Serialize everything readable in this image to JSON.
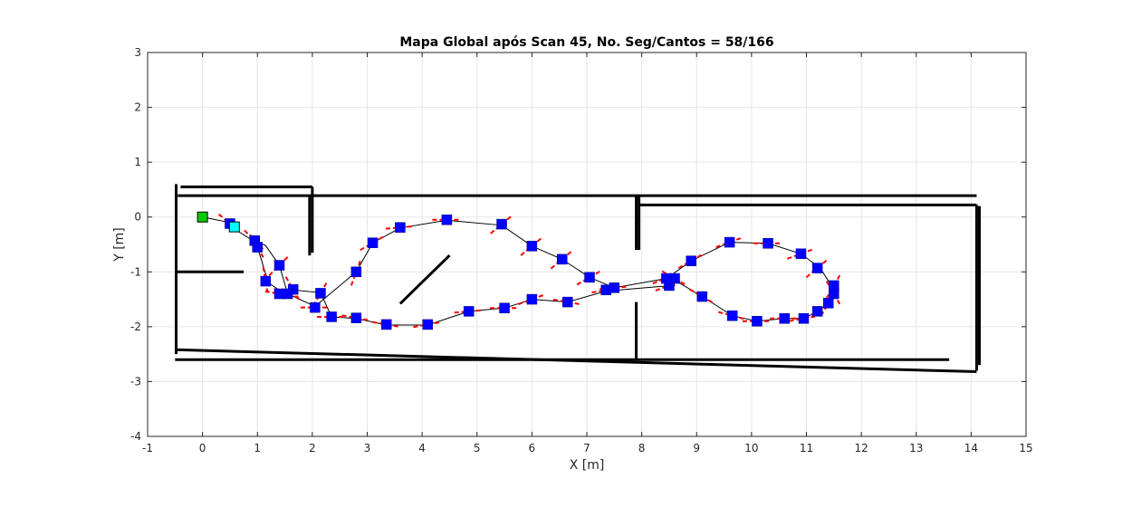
{
  "chart_data": {
    "type": "scatter",
    "title": "Mapa Global após Scan 45, No. Seg/Cantos = 58/166",
    "xlabel": "X [m]",
    "ylabel": "Y [m]",
    "xlim": [
      -1,
      15
    ],
    "ylim": [
      -4,
      3
    ],
    "xticks": [
      -1,
      0,
      1,
      2,
      3,
      4,
      5,
      6,
      7,
      8,
      9,
      10,
      11,
      12,
      13,
      14,
      15
    ],
    "yticks": [
      -4,
      -3,
      -2,
      -1,
      0,
      1,
      2,
      3
    ],
    "grid": true,
    "colors": {
      "path": "#000000",
      "pose_marker": "#0000ff",
      "heading": "#ff0000",
      "walls": "#000000",
      "start_marker": "#00cc00",
      "current_marker": "#00ffff"
    },
    "walls": [
      {
        "x": [
          -0.45,
          14.1
        ],
        "y": [
          0.39,
          0.39
        ]
      },
      {
        "x": [
          -0.4,
          2.0
        ],
        "y": [
          0.55,
          0.55
        ]
      },
      {
        "x": [
          -0.48,
          -0.48
        ],
        "y": [
          0.6,
          -2.5
        ]
      },
      {
        "x": [
          -0.48,
          0.75
        ],
        "y": [
          -1.0,
          -1.0
        ]
      },
      {
        "x": [
          1.95,
          1.95
        ],
        "y": [
          0.4,
          -0.7
        ]
      },
      {
        "x": [
          2.0,
          2.0
        ],
        "y": [
          0.55,
          -0.65
        ]
      },
      {
        "x": [
          7.9,
          7.9
        ],
        "y": [
          0.4,
          -0.6
        ]
      },
      {
        "x": [
          7.95,
          7.95
        ],
        "y": [
          0.38,
          -0.6
        ]
      },
      {
        "x": [
          7.95,
          14.1
        ],
        "y": [
          0.22,
          0.22
        ]
      },
      {
        "x": [
          14.1,
          14.1
        ],
        "y": [
          0.22,
          -2.8
        ]
      },
      {
        "x": [
          14.15,
          14.15
        ],
        "y": [
          0.2,
          -2.7
        ]
      },
      {
        "x": [
          7.9,
          7.9
        ],
        "y": [
          -1.55,
          -2.6
        ]
      },
      {
        "x": [
          -0.5,
          13.6
        ],
        "y": [
          -2.6,
          -2.6
        ]
      },
      {
        "x": [
          -0.5,
          14.1
        ],
        "y": [
          -2.42,
          -2.82
        ]
      },
      {
        "x": [
          3.6,
          4.5
        ],
        "y": [
          -1.58,
          -0.7
        ]
      }
    ],
    "path": {
      "x": [
        0.0,
        0.5,
        0.55,
        0.95,
        1.0,
        1.2,
        1.5,
        1.65,
        2.15,
        2.35,
        2.8,
        3.35,
        4.1,
        4.85,
        5.5,
        6.0,
        6.65,
        7.35,
        8.3,
        8.6,
        8.55,
        9.1,
        9.65,
        10.1,
        10.6,
        10.95,
        11.2,
        11.4,
        11.5,
        11.45,
        11.25,
        10.9,
        10.3,
        9.6,
        8.9,
        8.45,
        7.5,
        7.05,
        6.55,
        6.0,
        5.45,
        4.45,
        3.6,
        3.1,
        2.8,
        2.05,
        1.55,
        1.4,
        1.15,
        1.0,
        0.95
      ],
      "y": [
        0.0,
        -0.1,
        -0.2,
        -0.45,
        -0.55,
        -1.2,
        -1.4,
        -1.33,
        -1.38,
        -1.82,
        -1.85,
        -1.97,
        -1.97,
        -1.72,
        -1.66,
        -1.5,
        -1.55,
        -1.35,
        -1.27,
        -1.25,
        -1.12,
        -1.45,
        -1.8,
        -1.9,
        -1.85,
        -1.85,
        -1.72,
        -1.58,
        -1.4,
        -1.25,
        -0.93,
        -0.67,
        -0.48,
        -0.46,
        -0.8,
        -1.12,
        -1.29,
        -1.1,
        -0.77,
        -0.53,
        -0.15,
        -0.06,
        -0.2,
        -0.47,
        -1.0,
        -1.63,
        -1.4,
        -0.88,
        -0.52,
        -0.45,
        -0.42
      ]
    },
    "poses": {
      "x": [
        0.5,
        0.95,
        1.0,
        1.15,
        1.4,
        1.65,
        2.05,
        2.35,
        2.8,
        3.35,
        4.1,
        4.85,
        5.5,
        6.0,
        6.65,
        7.35,
        8.5,
        8.6,
        9.1,
        9.65,
        10.1,
        10.6,
        10.95,
        11.2,
        11.4,
        11.5,
        11.5,
        11.2,
        10.9,
        10.3,
        9.6,
        8.9,
        8.45,
        7.5,
        7.05,
        6.55,
        6.0,
        5.45,
        4.45,
        3.6,
        3.1,
        2.8,
        2.15,
        1.55,
        1.4
      ],
      "y": [
        -0.12,
        -0.43,
        -0.55,
        -1.17,
        -1.4,
        -1.32,
        -1.65,
        -1.82,
        -1.84,
        -1.96,
        -1.96,
        -1.72,
        -1.66,
        -1.5,
        -1.55,
        -1.33,
        -1.25,
        -1.12,
        -1.45,
        -1.8,
        -1.9,
        -1.85,
        -1.85,
        -1.72,
        -1.57,
        -1.4,
        -1.25,
        -0.93,
        -0.67,
        -0.48,
        -0.46,
        -0.8,
        -1.12,
        -1.29,
        -1.1,
        -0.77,
        -0.53,
        -0.13,
        -0.05,
        -0.19,
        -0.47,
        -1.0,
        -1.39,
        -1.4,
        -0.88
      ],
      "heading_deg": [
        -40,
        -45,
        -60,
        -80,
        -10,
        -60,
        0,
        0,
        -10,
        -10,
        10,
        5,
        0,
        20,
        -10,
        10,
        20,
        -30,
        -30,
        -15,
        0,
        0,
        10,
        30,
        60,
        -60,
        60,
        40,
        20,
        0,
        20,
        30,
        20,
        5,
        30,
        40,
        40,
        40,
        0,
        5,
        30,
        70,
        60,
        -20,
        45
      ]
    },
    "start_marker": {
      "x": 0.0,
      "y": 0.0
    },
    "current_marker": {
      "x": 0.58,
      "y": -0.18
    }
  }
}
